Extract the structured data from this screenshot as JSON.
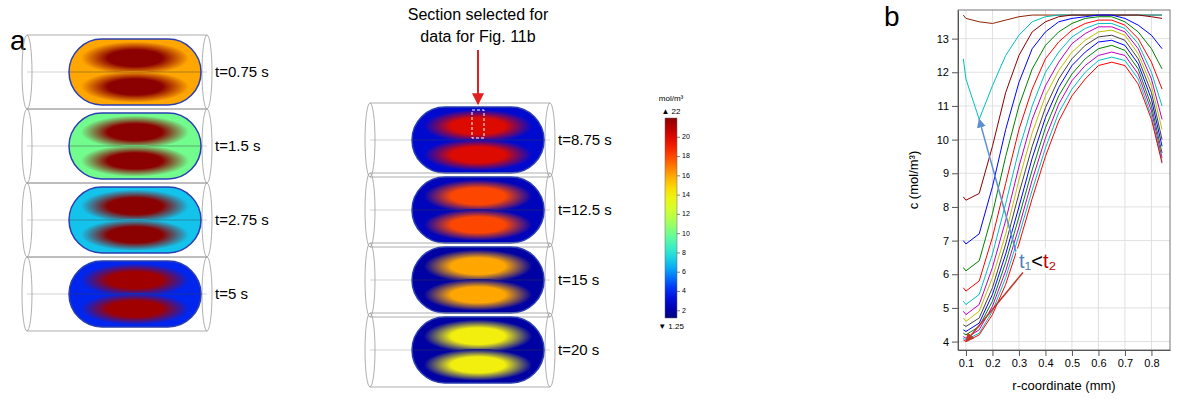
{
  "chart_data": [
    {
      "type": "heatmap",
      "panel_label": "a",
      "annotation": [
        "Section selected for",
        "data for Fig. 11b"
      ],
      "snapshots": [
        {
          "label": "t=0.75 s",
          "bulk": 16,
          "core": 22
        },
        {
          "label": "t=1.5 s",
          "bulk": 10,
          "core": 22
        },
        {
          "label": "t=2.75 s",
          "bulk": 7,
          "core": 22
        },
        {
          "label": "t=5 s",
          "bulk": 4,
          "core": 21.5
        },
        {
          "label": "t=8.75 s",
          "bulk": 3,
          "core": 20
        },
        {
          "label": "t=12.5 s",
          "bulk": 2.5,
          "core": 18
        },
        {
          "label": "t=15 s",
          "bulk": 2,
          "core": 16
        },
        {
          "label": "t=20 s",
          "bulk": 2,
          "core": 14
        }
      ],
      "colorbar": {
        "title": "mol/m³",
        "range": [
          1.25,
          22
        ],
        "ticks": [
          {
            "value": 22,
            "label": "▲ 22"
          },
          20,
          18,
          16,
          14,
          12,
          10,
          8,
          6,
          4,
          2,
          {
            "value": 1.25,
            "label": "▼ 1.25"
          }
        ]
      }
    },
    {
      "type": "line",
      "panel_label": "b",
      "x_label": "r-coordinate (mm)",
      "y_label": "c (mol/m³)",
      "x": [
        0.09,
        0.1,
        0.15,
        0.2,
        0.25,
        0.3,
        0.35,
        0.4,
        0.45,
        0.5,
        0.55,
        0.6,
        0.65,
        0.7,
        0.75,
        0.8,
        0.84
      ],
      "xlim": [
        0.07,
        0.87
      ],
      "xticks": [
        0.1,
        0.2,
        0.3,
        0.4,
        0.5,
        0.6,
        0.7,
        0.8
      ],
      "ylim": [
        3.75,
        13.85
      ],
      "yticks": [
        4,
        5,
        6,
        7,
        8,
        9,
        10,
        11,
        12,
        13
      ],
      "grid": true,
      "series": [
        {
          "color": "#8b2500",
          "values": [
            13.7,
            13.6,
            13.5,
            13.45,
            13.55,
            13.65,
            13.7,
            13.7,
            13.7,
            13.7,
            13.7,
            13.7,
            13.7,
            13.7,
            13.7,
            13.7,
            13.7
          ]
        },
        {
          "color": "#00bfbf",
          "values": [
            12.4,
            11.8,
            10.6,
            11.6,
            12.5,
            13.1,
            13.5,
            13.65,
            13.7,
            13.7,
            13.7,
            13.7,
            13.7,
            13.7,
            13.7,
            13.7,
            13.7
          ]
        },
        {
          "color": "#8b0000",
          "values": [
            8.3,
            8.2,
            8.4,
            9.8,
            11.4,
            12.5,
            13.2,
            13.5,
            13.65,
            13.7,
            13.7,
            13.7,
            13.7,
            13.7,
            13.7,
            13.65,
            13.6
          ]
        },
        {
          "color": "#0000ff",
          "values": [
            7.0,
            6.9,
            7.2,
            8.6,
            10.3,
            11.7,
            12.7,
            13.2,
            13.5,
            13.6,
            13.65,
            13.7,
            13.7,
            13.6,
            13.4,
            13.1,
            12.7
          ]
        },
        {
          "color": "#008000",
          "values": [
            6.2,
            6.1,
            6.4,
            7.8,
            9.5,
            11.0,
            12.1,
            12.8,
            13.2,
            13.45,
            13.6,
            13.65,
            13.65,
            13.5,
            13.2,
            12.7,
            12.1
          ]
        },
        {
          "color": "#ff0000",
          "values": [
            5.6,
            5.5,
            5.8,
            7.1,
            8.7,
            10.3,
            11.5,
            12.4,
            12.9,
            13.25,
            13.45,
            13.55,
            13.55,
            13.4,
            13.0,
            12.3,
            11.5
          ]
        },
        {
          "color": "#00bfbf",
          "values": [
            5.2,
            5.1,
            5.4,
            6.6,
            8.1,
            9.7,
            11.0,
            12.0,
            12.6,
            13.05,
            13.3,
            13.45,
            13.45,
            13.3,
            12.85,
            12.0,
            11.0
          ]
        },
        {
          "color": "#bf00bf",
          "values": [
            4.9,
            4.8,
            5.1,
            6.2,
            7.6,
            9.2,
            10.6,
            11.6,
            12.3,
            12.85,
            13.15,
            13.35,
            13.35,
            13.2,
            12.7,
            11.8,
            10.6
          ]
        },
        {
          "color": "#bfbf00",
          "values": [
            4.7,
            4.6,
            4.9,
            5.9,
            7.2,
            8.8,
            10.2,
            11.3,
            12.05,
            12.6,
            12.95,
            13.2,
            13.25,
            13.1,
            12.55,
            11.6,
            10.3
          ]
        },
        {
          "color": "#404040",
          "values": [
            4.5,
            4.45,
            4.7,
            5.6,
            6.9,
            8.4,
            9.8,
            10.95,
            11.8,
            12.4,
            12.8,
            13.05,
            13.1,
            12.95,
            12.4,
            11.4,
            10.0
          ]
        },
        {
          "color": "#0000ff",
          "values": [
            4.35,
            4.3,
            4.55,
            5.4,
            6.6,
            8.0,
            9.45,
            10.65,
            11.55,
            12.2,
            12.6,
            12.9,
            12.95,
            12.8,
            12.25,
            11.2,
            9.8
          ]
        },
        {
          "color": "#008000",
          "values": [
            4.25,
            4.2,
            4.45,
            5.2,
            6.35,
            7.7,
            9.1,
            10.35,
            11.3,
            11.95,
            12.4,
            12.7,
            12.8,
            12.65,
            12.1,
            11.0,
            9.6
          ]
        },
        {
          "color": "#bf00bf",
          "values": [
            4.15,
            4.1,
            4.35,
            5.05,
            6.1,
            7.4,
            8.8,
            10.05,
            11.05,
            11.75,
            12.2,
            12.5,
            12.6,
            12.5,
            11.95,
            10.85,
            9.45
          ]
        },
        {
          "color": "#00bfbf",
          "values": [
            4.1,
            4.05,
            4.25,
            4.9,
            5.9,
            7.15,
            8.5,
            9.75,
            10.8,
            11.5,
            12.0,
            12.35,
            12.45,
            12.35,
            11.8,
            10.7,
            9.35
          ]
        },
        {
          "color": "#ff0000",
          "values": [
            4.05,
            4.0,
            4.2,
            4.8,
            5.7,
            6.9,
            8.25,
            9.5,
            10.55,
            11.3,
            11.8,
            12.2,
            12.3,
            12.2,
            11.65,
            10.6,
            9.3
          ]
        }
      ],
      "annotation": [
        {
          "text": "t₁",
          "color": "#4f81bd"
        },
        {
          "text": "<",
          "color": "#000000"
        },
        {
          "text": "t₂",
          "color": "#c00000"
        }
      ]
    }
  ]
}
